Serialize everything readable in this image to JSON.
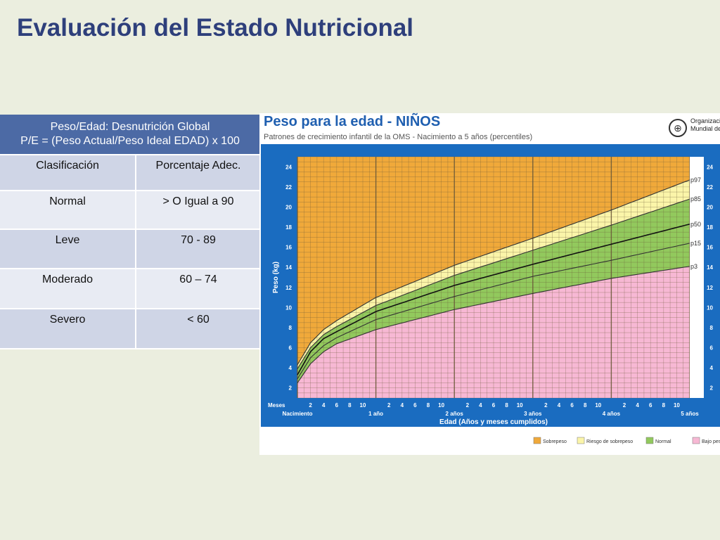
{
  "slide": {
    "title": "Evaluación del Estado Nutricional"
  },
  "table": {
    "header_line1": "Peso/Edad: Desnutrición Global",
    "header_line2": "P/E = (Peso Actual/Peso Ideal EDAD) x 100",
    "columns": [
      "Clasificación",
      "Porcentaje Adec."
    ],
    "rows": [
      {
        "label": "Normal",
        "value": "> O Igual a 90"
      },
      {
        "label": "Leve",
        "value": "70 - 89"
      },
      {
        "label": "Moderado",
        "value": "60 – 74"
      },
      {
        "label": "Severo",
        "value": "< 60"
      }
    ]
  },
  "chart": {
    "title": "Peso para la edad - NIÑOS",
    "subtitle": "Patrones de crecimiento infantil de la OMS - Nacimiento a 5 años (percentiles)",
    "org_line1": "Organización",
    "org_line2": "Mundial de la",
    "legend": [
      "Sobrepeso",
      "Riesgo de sobrepeso",
      "Normal",
      "Bajo peso"
    ],
    "colors": {
      "frame": "#1a6cc0",
      "sobrepeso": "#f0a93a",
      "riesgo": "#fbf5a9",
      "normal": "#92c95d",
      "bajo": "#f7b8d4"
    }
  },
  "chart_data": {
    "type": "line",
    "title": "Peso para la edad - NIÑOS",
    "xlabel": "Edad (Años y meses cumplidos)",
    "ylabel": "Peso (kg)",
    "xlim": [
      0,
      60
    ],
    "ylim": [
      1,
      25
    ],
    "x_unit": "months",
    "x_tick_labels": [
      "Meses",
      "Nacimiento",
      "2",
      "4",
      "6",
      "8",
      "10",
      "1 año",
      "2",
      "4",
      "6",
      "8",
      "10",
      "2 años",
      "2",
      "4",
      "6",
      "8",
      "10",
      "3 años",
      "2",
      "4",
      "6",
      "8",
      "10",
      "4 años",
      "2",
      "4",
      "6",
      "8",
      "10",
      "5 años"
    ],
    "y_ticks": [
      2,
      4,
      6,
      8,
      10,
      12,
      14,
      16,
      18,
      20,
      22,
      24
    ],
    "x": [
      0,
      2,
      4,
      6,
      12,
      24,
      36,
      48,
      60
    ],
    "series": [
      {
        "name": "p97",
        "values": [
          4.3,
          6.5,
          7.8,
          8.7,
          11.0,
          14.2,
          16.9,
          19.7,
          22.7
        ]
      },
      {
        "name": "p85",
        "values": [
          3.9,
          6.0,
          7.3,
          8.1,
          10.2,
          13.2,
          15.7,
          18.2,
          20.8
        ]
      },
      {
        "name": "p50",
        "values": [
          3.3,
          5.6,
          6.9,
          7.6,
          9.6,
          12.2,
          14.3,
          16.3,
          18.3
        ]
      },
      {
        "name": "p15",
        "values": [
          2.9,
          5.0,
          6.2,
          7.0,
          8.8,
          11.1,
          13.1,
          14.7,
          16.4
        ]
      },
      {
        "name": "p3",
        "values": [
          2.5,
          4.4,
          5.6,
          6.4,
          7.8,
          9.8,
          11.4,
          12.9,
          14.1
        ]
      }
    ],
    "bands": [
      {
        "name": "Sobrepeso",
        "region": "above p97"
      },
      {
        "name": "Riesgo de sobrepeso",
        "region": "p85 to p97"
      },
      {
        "name": "Normal",
        "region": "p3 to p85"
      },
      {
        "name": "Bajo peso",
        "region": "below p3"
      }
    ],
    "grid": true,
    "legend_position": "bottom"
  }
}
